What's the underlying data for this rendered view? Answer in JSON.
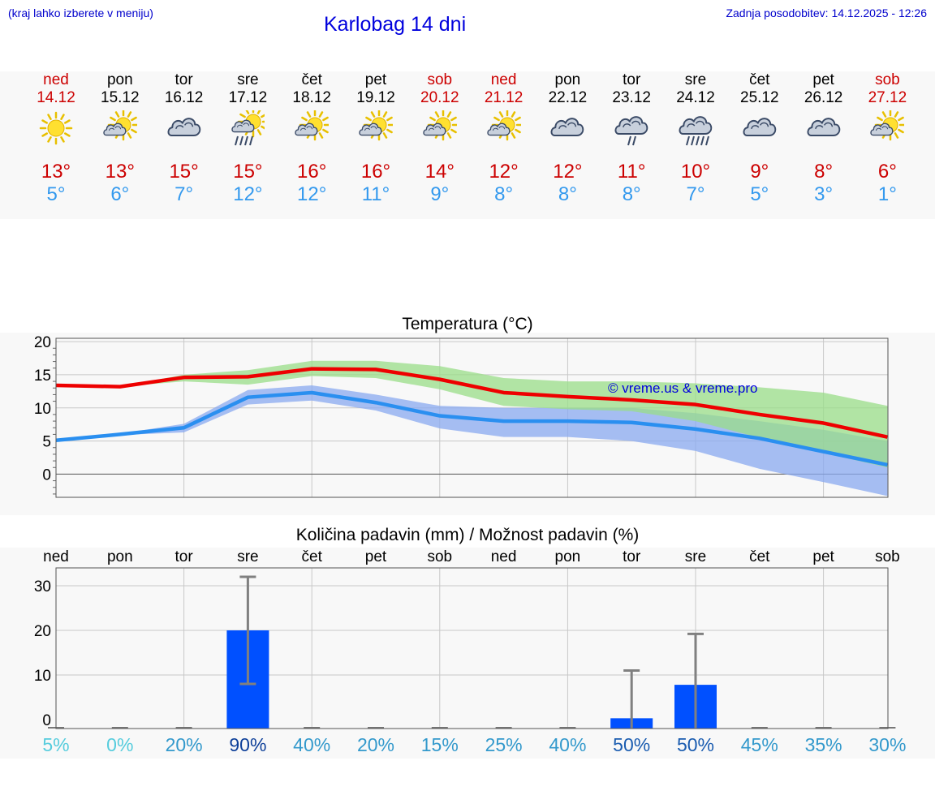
{
  "header": {
    "left_note": "(kraj lahko izberete v meniju)",
    "title": "Karlobag 14 dni",
    "updated": "Zadnja posodobitev: 14.12.2025 - 12:26"
  },
  "days": [
    {
      "name": "ned",
      "date": "14.12",
      "weekend": true,
      "icon": "sun-icon",
      "tmax": "13°",
      "tmin": "5°"
    },
    {
      "name": "pon",
      "date": "15.12",
      "weekend": false,
      "icon": "sun-cloud-icon",
      "tmax": "13°",
      "tmin": "6°"
    },
    {
      "name": "tor",
      "date": "16.12",
      "weekend": false,
      "icon": "cloud-icon",
      "tmax": "15°",
      "tmin": "7°"
    },
    {
      "name": "sre",
      "date": "17.12",
      "weekend": false,
      "icon": "sun-cloud-rain-icon",
      "tmax": "15°",
      "tmin": "12°"
    },
    {
      "name": "čet",
      "date": "18.12",
      "weekend": false,
      "icon": "sun-cloud-icon",
      "tmax": "16°",
      "tmin": "12°"
    },
    {
      "name": "pet",
      "date": "19.12",
      "weekend": false,
      "icon": "sun-cloud-icon",
      "tmax": "16°",
      "tmin": "11°"
    },
    {
      "name": "sob",
      "date": "20.12",
      "weekend": true,
      "icon": "sun-cloud-icon",
      "tmax": "14°",
      "tmin": "9°"
    },
    {
      "name": "ned",
      "date": "21.12",
      "weekend": true,
      "icon": "sun-cloud-icon",
      "tmax": "12°",
      "tmin": "8°"
    },
    {
      "name": "pon",
      "date": "22.12",
      "weekend": false,
      "icon": "cloud-icon",
      "tmax": "12°",
      "tmin": "8°"
    },
    {
      "name": "tor",
      "date": "23.12",
      "weekend": false,
      "icon": "cloud-rain-icon",
      "tmax": "11°",
      "tmin": "8°"
    },
    {
      "name": "sre",
      "date": "24.12",
      "weekend": false,
      "icon": "cloud-rain-heavy-icon",
      "tmax": "10°",
      "tmin": "7°"
    },
    {
      "name": "čet",
      "date": "25.12",
      "weekend": false,
      "icon": "cloud-icon",
      "tmax": "9°",
      "tmin": "5°"
    },
    {
      "name": "pet",
      "date": "26.12",
      "weekend": false,
      "icon": "cloud-icon",
      "tmax": "8°",
      "tmin": "3°"
    },
    {
      "name": "sob",
      "date": "27.12",
      "weekend": true,
      "icon": "sun-cloud-icon",
      "tmax": "6°",
      "tmin": "1°"
    }
  ],
  "colors": {
    "max_line": "#ee0000",
    "min_line": "#2a8ff0",
    "max_band": "#99dd88",
    "min_band": "#8aaaf0",
    "bar": "#0050ff",
    "err": "#808080",
    "weekend": "#cc0000",
    "title": "#0000dd"
  },
  "chart_data": [
    {
      "type": "line",
      "title": "Temperatura (°C)",
      "watermark": "© vreme.us & vreme.pro",
      "ylim": [
        -3.5,
        20.5
      ],
      "yticks": [
        "20",
        "15",
        "10",
        "5",
        "0"
      ],
      "x": [
        0,
        1,
        2,
        3,
        4,
        5,
        6,
        7,
        8,
        9,
        10,
        11,
        12,
        13
      ],
      "series": [
        {
          "name": "max",
          "values": [
            13.4,
            13.2,
            14.6,
            14.7,
            15.9,
            15.8,
            14.3,
            12.3,
            11.7,
            11.2,
            10.5,
            9.0,
            7.7,
            5.6
          ],
          "band_low": [
            13.4,
            13.2,
            14.0,
            13.5,
            14.8,
            14.5,
            12.8,
            10.3,
            9.8,
            9.5,
            8.0,
            5.5,
            3.2,
            1.0
          ],
          "band_high": [
            13.4,
            13.2,
            15.0,
            15.7,
            17.1,
            17.1,
            16.3,
            14.5,
            14.0,
            14.0,
            13.7,
            13.1,
            12.3,
            10.3
          ]
        },
        {
          "name": "min",
          "values": [
            5.1,
            6.0,
            7.0,
            11.6,
            12.3,
            10.8,
            8.8,
            8.0,
            8.0,
            7.8,
            6.8,
            5.4,
            3.4,
            1.4
          ],
          "band_low": [
            5.1,
            5.9,
            6.3,
            10.5,
            11.1,
            9.6,
            6.9,
            5.6,
            5.6,
            5.0,
            3.5,
            0.8,
            -1.2,
            -3.3
          ],
          "band_high": [
            5.1,
            6.1,
            7.6,
            12.7,
            13.4,
            12.0,
            10.3,
            10.0,
            10.0,
            10.0,
            9.2,
            8.0,
            6.7,
            5.0
          ]
        }
      ]
    },
    {
      "type": "bar",
      "title": "Količina padavin (mm) / Možnost padavin (%)",
      "ylim": [
        -2,
        34
      ],
      "yticks": [
        "30",
        "20",
        "10",
        "0"
      ],
      "categories": [
        "ned",
        "pon",
        "tor",
        "sre",
        "čet",
        "pet",
        "sob",
        "ned",
        "pon",
        "tor",
        "sre",
        "čet",
        "pet",
        "sob"
      ],
      "values": [
        0,
        0,
        0,
        20,
        0,
        0,
        0,
        0,
        0,
        0.3,
        7.8,
        0,
        0,
        0
      ],
      "err_low": [
        0,
        0,
        0,
        8,
        0,
        0,
        0,
        0,
        0,
        0,
        0,
        0,
        0,
        0
      ],
      "err_high": [
        0,
        0,
        0,
        32,
        0,
        0,
        0,
        0,
        0,
        11,
        19.2,
        0,
        0,
        0
      ],
      "chance": [
        "5%",
        "0%",
        "20%",
        "90%",
        "40%",
        "20%",
        "15%",
        "25%",
        "40%",
        "50%",
        "50%",
        "45%",
        "35%",
        "30%"
      ],
      "chance_values": [
        5,
        0,
        20,
        90,
        40,
        20,
        15,
        25,
        40,
        50,
        50,
        45,
        35,
        30
      ]
    }
  ]
}
